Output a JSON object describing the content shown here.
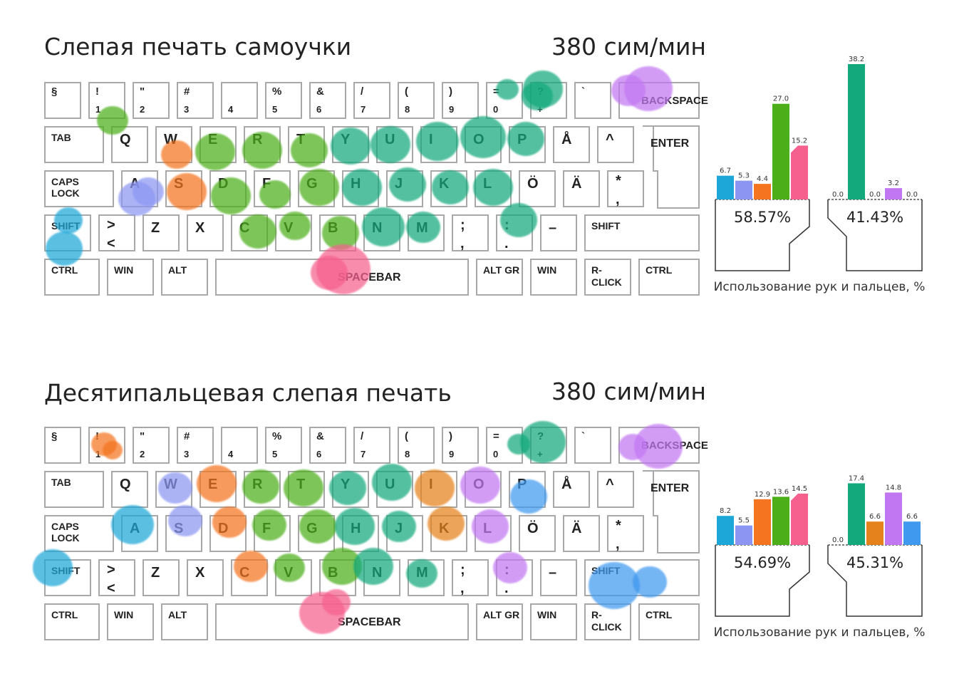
{
  "colors": {
    "left_pinky": "#1da7d8",
    "left_ring": "#8c96f2",
    "left_middle": "#f4741f",
    "left_index": "#4caf1a",
    "left_thumb": "#f6608e",
    "right_index": "#13a97c",
    "right_middle": "#e6821b",
    "right_ring": "#c277f2",
    "right_pinky": "#3f99ef",
    "right_thumb": "#f6608e"
  },
  "keys": {
    "section": "§",
    "excl": "!",
    "n1": "1",
    "quote": "\"",
    "n2": "2",
    "hash": "#",
    "n3": "3",
    "n4": "4",
    "percent": "%",
    "n5": "5",
    "amp": "&",
    "n6": "6",
    "slash": "/",
    "n7": "7",
    "lparen": "(",
    "n8": "8",
    "rparen": ")",
    "n9": "9",
    "equals": "=",
    "n0": "0",
    "question": "?",
    "plus": "+",
    "backtick": "`",
    "backspace": "BACKSPACE",
    "tab": "TAB",
    "q": "Q",
    "w": "W",
    "e": "E",
    "r": "R",
    "t": "T",
    "y": "Y",
    "u": "U",
    "i": "I",
    "o": "O",
    "p": "P",
    "aring": "Å",
    "caret": "^",
    "enter": "ENTER",
    "caps": "CAPS",
    "lock": "LOCK",
    "a": "A",
    "s": "S",
    "d": "D",
    "f": "F",
    "g": "G",
    "h": "H",
    "j": "J",
    "k": "K",
    "l": "L",
    "ouml": "Ö",
    "auml": "Ä",
    "star": "*",
    "apos": ",",
    "shift": "SHIFT",
    "gt": ">",
    "lt": "<",
    "z": "Z",
    "x": "X",
    "c": "C",
    "v": "V",
    "b": "B",
    "n": "N",
    "m": "M",
    "semicolon": ";",
    "comma": ",",
    "colon": ":",
    "period": ".",
    "dash": "–",
    "ctrl": "CTRL",
    "win": "WIN",
    "alt": "ALT",
    "spacebar": "SPACEBAR",
    "altgr": "ALT GR",
    "rclick": "R-CLICK"
  },
  "panels": [
    {
      "title": "Слепая печать самоучки",
      "speed": "380 сим/мин",
      "left_hand_percent": "58.57%",
      "right_hand_percent": "41.43%",
      "caption": "Использование рук и пальцев, %",
      "finger_chart": {
        "left": [
          {
            "finger": "pinky",
            "value": 6.7,
            "label": "6.7",
            "color": "#1da7d8"
          },
          {
            "finger": "ring",
            "value": 5.3,
            "label": "5.3",
            "color": "#8c96f2"
          },
          {
            "finger": "middle",
            "value": 4.4,
            "label": "4.4",
            "color": "#f4741f"
          },
          {
            "finger": "index",
            "value": 27.0,
            "label": "27.0",
            "color": "#4caf1a"
          },
          {
            "finger": "thumb",
            "value": 15.2,
            "label": "15.2",
            "color": "#f6608e"
          }
        ],
        "right": [
          {
            "finger": "thumb",
            "value": 0.0,
            "label": "0.0",
            "color": "#f6608e"
          },
          {
            "finger": "index",
            "value": 38.2,
            "label": "38.2",
            "color": "#13a97c"
          },
          {
            "finger": "middle",
            "value": 0.0,
            "label": "0.0",
            "color": "#e6821b"
          },
          {
            "finger": "ring",
            "value": 3.2,
            "label": "3.2",
            "color": "#c277f2"
          },
          {
            "finger": "pinky",
            "value": 0.0,
            "label": "0.0",
            "color": "#3f99ef"
          }
        ]
      }
    },
    {
      "title": "Десятипальцевая слепая печать",
      "speed": "380 сим/мин",
      "left_hand_percent": "54.69%",
      "right_hand_percent": "45.31%",
      "caption": "Использование рук и пальцев, %",
      "finger_chart": {
        "left": [
          {
            "finger": "pinky",
            "value": 8.2,
            "label": "8.2",
            "color": "#1da7d8"
          },
          {
            "finger": "ring",
            "value": 5.5,
            "label": "5.5",
            "color": "#8c96f2"
          },
          {
            "finger": "middle",
            "value": 12.9,
            "label": "12.9",
            "color": "#f4741f"
          },
          {
            "finger": "index",
            "value": 13.6,
            "label": "13.6",
            "color": "#4caf1a"
          },
          {
            "finger": "thumb",
            "value": 14.5,
            "label": "14.5",
            "color": "#f6608e"
          }
        ],
        "right": [
          {
            "finger": "thumb",
            "value": 0.0,
            "label": "0.0",
            "color": "#f6608e"
          },
          {
            "finger": "index",
            "value": 17.4,
            "label": "17.4",
            "color": "#13a97c"
          },
          {
            "finger": "middle",
            "value": 6.6,
            "label": "6.6",
            "color": "#e6821b"
          },
          {
            "finger": "ring",
            "value": 14.8,
            "label": "14.8",
            "color": "#c277f2"
          },
          {
            "finger": "pinky",
            "value": 6.6,
            "label": "6.6",
            "color": "#3f99ef"
          }
        ]
      }
    }
  ]
}
